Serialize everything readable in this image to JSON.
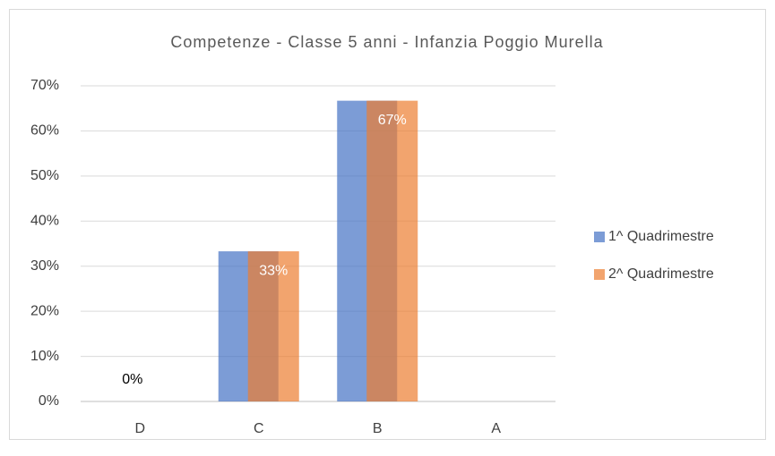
{
  "chart_data": {
    "type": "bar",
    "title": "Competenze - Classe 5 anni - Infanzia Poggio Murella",
    "categories": [
      "D",
      "C",
      "B",
      "A"
    ],
    "series": [
      {
        "name": "1^ Quadrimestre",
        "color": "#4472c4",
        "values": [
          0,
          33.3,
          66.7,
          0
        ]
      },
      {
        "name": "2^ Quadrimestre",
        "color": "#ed7d31",
        "values": [
          0,
          33.3,
          66.7,
          0
        ],
        "value_labels": [
          "0%",
          "33%",
          "67%",
          null
        ]
      }
    ],
    "ylim": [
      0,
      70
    ],
    "yticks": [
      {
        "value": 0,
        "label": "0%"
      },
      {
        "value": 10,
        "label": "10%"
      },
      {
        "value": 20,
        "label": "20%"
      },
      {
        "value": 30,
        "label": "30%"
      },
      {
        "value": 40,
        "label": "40%"
      },
      {
        "value": 50,
        "label": "50%"
      },
      {
        "value": 60,
        "label": "60%"
      },
      {
        "value": 70,
        "label": "70%"
      }
    ],
    "grid": true,
    "legend": "right"
  }
}
